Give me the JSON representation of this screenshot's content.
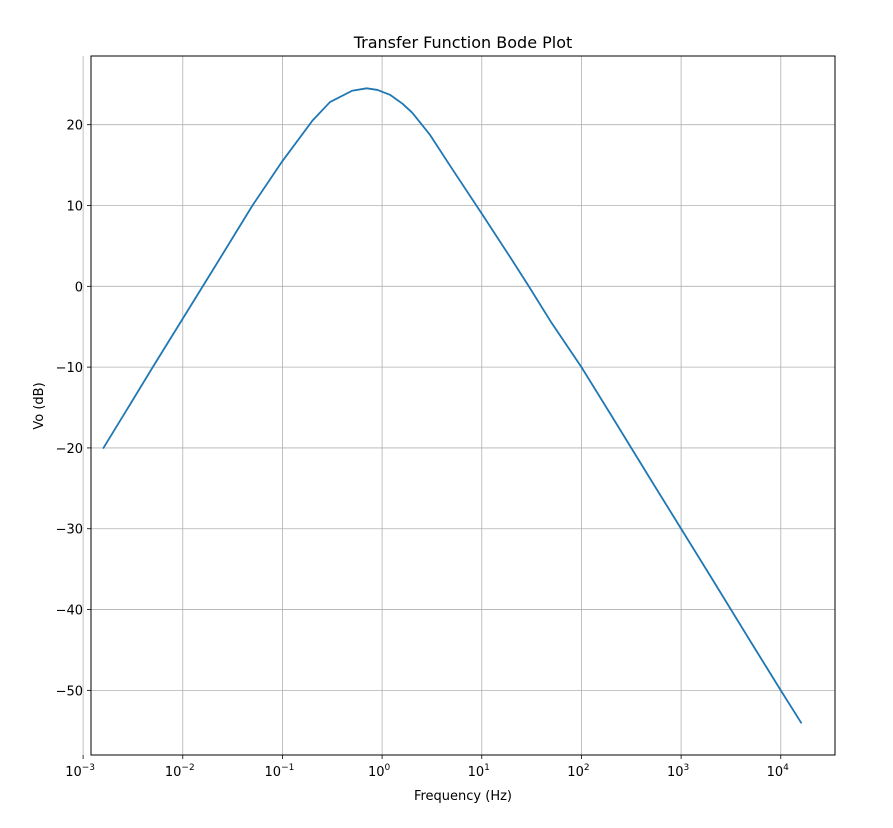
{
  "chart_data": {
    "type": "line",
    "title": "Transfer Function Bode Plot",
    "xlabel": "Frequency (Hz)",
    "ylabel": "Vo (dB)",
    "x_scale": "log",
    "xlim": [
      0.0012,
      35000
    ],
    "ylim": [
      -58,
      28.5
    ],
    "grid": true,
    "legend": "none",
    "x_ticks": [
      {
        "value": 0.001,
        "base": "10",
        "exp": "−3"
      },
      {
        "value": 0.01,
        "base": "10",
        "exp": "−2"
      },
      {
        "value": 0.1,
        "base": "10",
        "exp": "−1"
      },
      {
        "value": 1,
        "base": "10",
        "exp": "0"
      },
      {
        "value": 10,
        "base": "10",
        "exp": "1"
      },
      {
        "value": 100,
        "base": "10",
        "exp": "2"
      },
      {
        "value": 1000,
        "base": "10",
        "exp": "3"
      },
      {
        "value": 10000,
        "base": "10",
        "exp": "4"
      }
    ],
    "y_ticks": [
      {
        "value": 20,
        "label": "20"
      },
      {
        "value": 10,
        "label": "10"
      },
      {
        "value": 0,
        "label": "0"
      },
      {
        "value": -10,
        "label": "−10"
      },
      {
        "value": -20,
        "label": "−20"
      },
      {
        "value": -30,
        "label": "−30"
      },
      {
        "value": -40,
        "label": "−40"
      },
      {
        "value": -50,
        "label": "−50"
      }
    ],
    "series": [
      {
        "color": "#1f77b4",
        "x": [
          0.0016,
          0.003,
          0.005,
          0.01,
          0.02,
          0.05,
          0.1,
          0.2,
          0.3,
          0.5,
          0.7,
          0.9,
          1.2,
          1.6,
          2,
          3,
          5,
          10,
          20,
          30,
          50,
          100,
          200,
          500,
          1000,
          2000,
          5000,
          10000,
          16000
        ],
        "y": [
          -20.0,
          -14.5,
          -10.0,
          -4.0,
          2.0,
          10.0,
          15.5,
          20.5,
          22.8,
          24.2,
          24.5,
          24.3,
          23.7,
          22.6,
          21.5,
          18.8,
          14.6,
          9.0,
          3.3,
          -0.1,
          -4.5,
          -10.0,
          -16.0,
          -24.0,
          -30.0,
          -36.0,
          -44.0,
          -50.0,
          -54.0
        ]
      }
    ]
  }
}
